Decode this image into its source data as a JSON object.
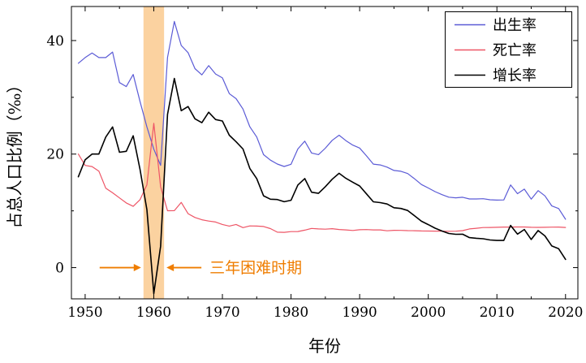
{
  "chart_data": {
    "type": "line",
    "xlabel": "年份",
    "ylabel": "占总人口比例（‰）",
    "grid": false,
    "legend_position": "top-right",
    "xlim": [
      1948,
      2021.8
    ],
    "ylim": [
      -5.5,
      46
    ],
    "x_ticks": [
      1950,
      1960,
      1970,
      1980,
      1990,
      2000,
      2010,
      2020
    ],
    "x_minor_ticks": [
      1955,
      1965,
      1975,
      1985,
      1995,
      2005,
      2015
    ],
    "y_ticks": [
      0,
      20,
      40
    ],
    "y_minor_ticks": [
      10,
      30
    ],
    "x": [
      1949,
      1950,
      1951,
      1952,
      1953,
      1954,
      1955,
      1956,
      1957,
      1958,
      1959,
      1960,
      1961,
      1962,
      1963,
      1964,
      1965,
      1966,
      1967,
      1968,
      1969,
      1970,
      1971,
      1972,
      1973,
      1974,
      1975,
      1976,
      1977,
      1978,
      1979,
      1980,
      1981,
      1982,
      1983,
      1984,
      1985,
      1986,
      1987,
      1988,
      1989,
      1990,
      1991,
      1992,
      1993,
      1994,
      1995,
      1996,
      1997,
      1998,
      1999,
      2000,
      2001,
      2002,
      2003,
      2004,
      2005,
      2006,
      2007,
      2008,
      2009,
      2010,
      2011,
      2012,
      2013,
      2014,
      2015,
      2016,
      2017,
      2018,
      2019,
      2020
    ],
    "series": [
      {
        "name": "出生率",
        "color": "#5b5bd6",
        "values": [
          36.0,
          37.0,
          37.8,
          37.0,
          37.0,
          37.97,
          32.6,
          31.9,
          34.03,
          29.22,
          24.78,
          20.86,
          18.02,
          37.01,
          43.37,
          39.14,
          37.88,
          35.05,
          33.96,
          35.59,
          34.11,
          33.43,
          30.65,
          29.77,
          27.93,
          24.82,
          23.01,
          19.91,
          18.93,
          18.25,
          17.82,
          18.21,
          20.91,
          22.28,
          20.19,
          19.9,
          21.04,
          22.43,
          23.33,
          22.37,
          21.58,
          21.06,
          19.68,
          18.24,
          18.09,
          17.7,
          17.12,
          16.98,
          16.57,
          15.64,
          14.64,
          14.03,
          13.38,
          12.86,
          12.41,
          12.29,
          12.4,
          12.09,
          12.1,
          12.14,
          11.95,
          11.9,
          11.93,
          14.57,
          13.03,
          13.83,
          12.07,
          13.57,
          12.64,
          10.86,
          10.41,
          8.52
        ]
      },
      {
        "name": "死亡率",
        "color": "#ee5566",
        "values": [
          20.0,
          18.0,
          17.8,
          17.0,
          14.0,
          13.18,
          12.28,
          11.4,
          10.8,
          11.98,
          14.59,
          25.43,
          14.24,
          10.02,
          10.04,
          11.5,
          9.5,
          8.83,
          8.43,
          8.21,
          8.03,
          7.6,
          7.32,
          7.61,
          7.04,
          7.34,
          7.32,
          7.25,
          6.87,
          6.25,
          6.21,
          6.34,
          6.36,
          6.6,
          6.9,
          6.82,
          6.78,
          6.86,
          6.72,
          6.64,
          6.54,
          6.67,
          6.7,
          6.64,
          6.64,
          6.49,
          6.57,
          6.56,
          6.51,
          6.5,
          6.46,
          6.45,
          6.43,
          6.41,
          6.4,
          6.42,
          6.51,
          6.81,
          6.93,
          7.06,
          7.08,
          7.11,
          7.14,
          7.15,
          7.16,
          7.16,
          7.11,
          7.09,
          7.11,
          7.13,
          7.14,
          7.07
        ]
      },
      {
        "name": "增长率",
        "color": "#000000",
        "values": [
          16.0,
          19.0,
          20.0,
          20.0,
          23.0,
          24.79,
          20.32,
          20.5,
          23.23,
          17.24,
          10.19,
          -4.57,
          3.78,
          26.99,
          33.33,
          27.64,
          28.38,
          26.22,
          25.53,
          27.38,
          26.08,
          25.83,
          23.33,
          22.16,
          20.89,
          17.48,
          15.69,
          12.66,
          12.06,
          12.0,
          11.61,
          11.87,
          14.55,
          15.68,
          13.29,
          13.08,
          14.26,
          15.57,
          16.61,
          15.73,
          15.04,
          14.39,
          12.98,
          11.6,
          11.45,
          11.21,
          10.55,
          10.42,
          10.06,
          9.14,
          8.18,
          7.58,
          6.95,
          6.45,
          6.01,
          5.87,
          5.89,
          5.28,
          5.17,
          5.08,
          4.87,
          4.79,
          4.79,
          7.43,
          5.9,
          6.71,
          4.96,
          6.53,
          5.58,
          3.81,
          3.32,
          1.45
        ]
      }
    ],
    "highlight_band": {
      "x0": 1958.5,
      "x1": 1961.5,
      "color": "#fbd2a0"
    },
    "annotation": {
      "text": "三年困难时期",
      "color": "#ef7d00"
    }
  }
}
